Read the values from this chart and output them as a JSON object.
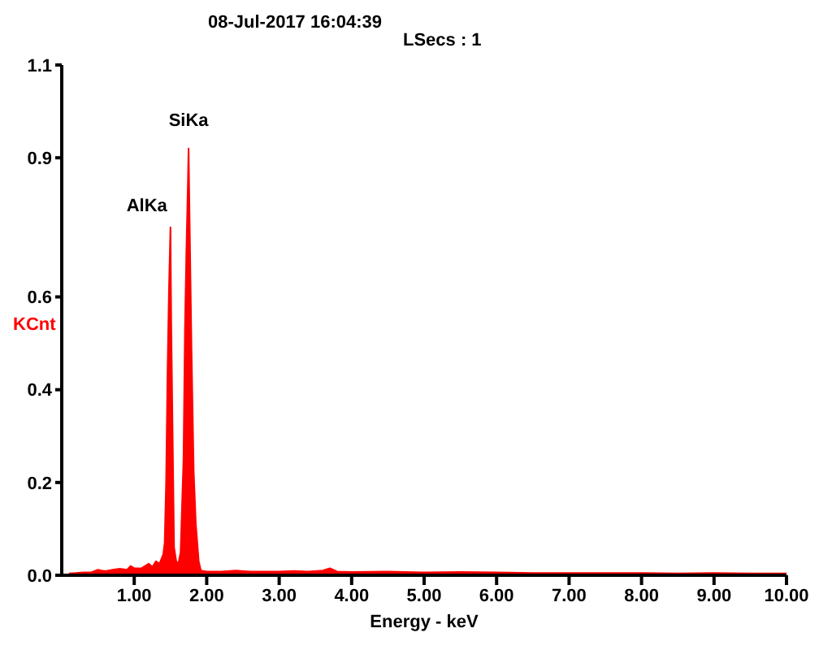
{
  "chart_data": {
    "type": "area",
    "title": "08-Jul-2017 16:04:39",
    "subtitle": "LSecs : 1",
    "xlabel": "Energy - keV",
    "ylabel": "KCnt",
    "x": [
      0.1,
      0.2,
      0.3,
      0.4,
      0.5,
      0.55,
      0.6,
      0.7,
      0.8,
      0.9,
      0.95,
      1.0,
      1.1,
      1.2,
      1.25,
      1.3,
      1.35,
      1.4,
      1.42,
      1.44,
      1.46,
      1.48,
      1.5,
      1.51,
      1.53,
      1.55,
      1.58,
      1.61,
      1.64,
      1.66,
      1.68,
      1.7,
      1.72,
      1.74,
      1.75,
      1.77,
      1.79,
      1.82,
      1.85,
      1.89,
      1.92,
      2.0,
      2.2,
      2.4,
      2.6,
      2.8,
      3.0,
      3.2,
      3.4,
      3.6,
      3.7,
      3.8,
      4.0,
      4.5,
      5.0,
      5.5,
      6.0,
      6.5,
      7.0,
      7.5,
      8.0,
      8.5,
      9.0,
      9.5,
      10.0
    ],
    "series": [
      {
        "color": "#ff0000",
        "values": [
          0.004,
          0.005,
          0.006,
          0.006,
          0.012,
          0.01,
          0.009,
          0.012,
          0.014,
          0.012,
          0.02,
          0.015,
          0.015,
          0.025,
          0.018,
          0.03,
          0.025,
          0.045,
          0.07,
          0.2,
          0.44,
          0.62,
          0.75,
          0.55,
          0.3,
          0.06,
          0.03,
          0.025,
          0.05,
          0.15,
          0.25,
          0.53,
          0.7,
          0.84,
          0.92,
          0.7,
          0.49,
          0.225,
          0.11,
          0.03,
          0.01,
          0.008,
          0.008,
          0.01,
          0.008,
          0.008,
          0.008,
          0.009,
          0.008,
          0.01,
          0.015,
          0.008,
          0.007,
          0.008,
          0.006,
          0.007,
          0.006,
          0.005,
          0.005,
          0.005,
          0.005,
          0.004,
          0.005,
          0.004,
          0.004
        ]
      }
    ],
    "xlim": [
      0,
      10
    ],
    "xticks": [
      {
        "value": 1,
        "label": "1.00"
      },
      {
        "value": 2,
        "label": "2.00"
      },
      {
        "value": 3,
        "label": "3.00"
      },
      {
        "value": 4,
        "label": "4.00"
      },
      {
        "value": 5,
        "label": "5.00"
      },
      {
        "value": 6,
        "label": "6.00"
      },
      {
        "value": 7,
        "label": "7.00"
      },
      {
        "value": 8,
        "label": "8.00"
      },
      {
        "value": 9,
        "label": "9.00"
      },
      {
        "value": 10,
        "label": "10.00"
      }
    ],
    "ylim": [
      0,
      1.1
    ],
    "yticks": [
      {
        "value": 0,
        "label": "0.0"
      },
      {
        "value": 0.2,
        "label": "0.2"
      },
      {
        "value": 0.4,
        "label": "0.4"
      },
      {
        "value": 0.6,
        "label": "0.6"
      },
      {
        "value": 0.9,
        "label": "0.9"
      },
      {
        "value": 1.1,
        "label": "1.1"
      }
    ],
    "annotations": [
      {
        "text": "AlKa",
        "x": 1.5,
        "y": 0.75
      },
      {
        "text": "SiKa",
        "x": 1.75,
        "y": 0.92
      }
    ],
    "grid": false,
    "legend": false
  }
}
